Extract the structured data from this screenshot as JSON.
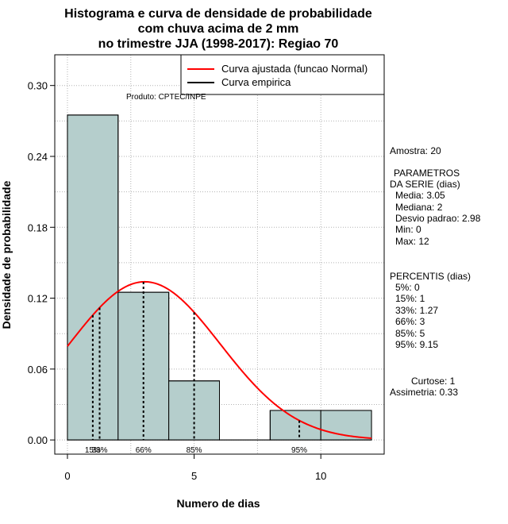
{
  "chart_data": {
    "type": "histogram",
    "title": [
      "Histograma e curva de densidade de probabilidade",
      "com chuva acima de 2 mm",
      "no trimestre JJA (1998-2017): Regiao 70"
    ],
    "xlabel": "Numero de dias",
    "ylabel": "Densidade de probabilidade",
    "xlim": [
      -0.5,
      12.5
    ],
    "ylim": [
      -0.012,
      0.326
    ],
    "x_ticks": [
      {
        "v": 0,
        "label": "0"
      },
      {
        "v": 5,
        "label": "5"
      },
      {
        "v": 10,
        "label": "10"
      }
    ],
    "y_ticks": [
      {
        "v": 0,
        "label": "0.00"
      },
      {
        "v": 0.06,
        "label": "0.06"
      },
      {
        "v": 0.12,
        "label": "0.12"
      },
      {
        "v": 0.18,
        "label": "0.18"
      },
      {
        "v": 0.24,
        "label": "0.24"
      },
      {
        "v": 0.3,
        "label": "0.30"
      }
    ],
    "grid": true,
    "bin_fill": "#b5cecc",
    "bins": [
      {
        "start": 0,
        "end": 2,
        "density": 0.275
      },
      {
        "start": 2,
        "end": 4,
        "density": 0.125
      },
      {
        "start": 4,
        "end": 6,
        "density": 0.05
      },
      {
        "start": 6,
        "end": 8,
        "density": 0
      },
      {
        "start": 8,
        "end": 10,
        "density": 0.025
      },
      {
        "start": 10,
        "end": 12,
        "density": 0.025
      }
    ],
    "normal_fit": {
      "mean": 3.05,
      "sd": 2.98,
      "color": "#ff0000",
      "x_range": [
        0,
        12
      ]
    },
    "percentile_lines": [
      {
        "label": "15%",
        "value": 1
      },
      {
        "label": "33%",
        "value": 1.27
      },
      {
        "label": "66%",
        "value": 3
      },
      {
        "label": "85%",
        "value": 5
      },
      {
        "label": "95%",
        "value": 9.15
      }
    ],
    "legend": {
      "position": "top-right",
      "items": [
        {
          "label": "Curva ajustada (funcao Normal)",
          "color": "#ff0000"
        },
        {
          "label": "Curva empirica",
          "color": "#000000"
        }
      ]
    },
    "annotation": "Produto: CPTEC/INPE"
  },
  "stats": {
    "sample": "Amostra: 20",
    "params_title": [
      "PARAMETROS",
      "DA SERIE (dias)"
    ],
    "params": [
      "Media: 3.05",
      "Mediana: 2",
      "Desvio padrao: 2.98",
      "Min: 0",
      "Max: 12"
    ],
    "percentis_title": "PERCENTIS (dias)",
    "percentis": [
      "5%: 0",
      "15%: 1",
      "33%: 1.27",
      "66%: 3",
      "85%: 5",
      "95%: 9.15"
    ],
    "curtose": "Curtose: 1",
    "assimetria": "Assimetria: 0.33"
  }
}
